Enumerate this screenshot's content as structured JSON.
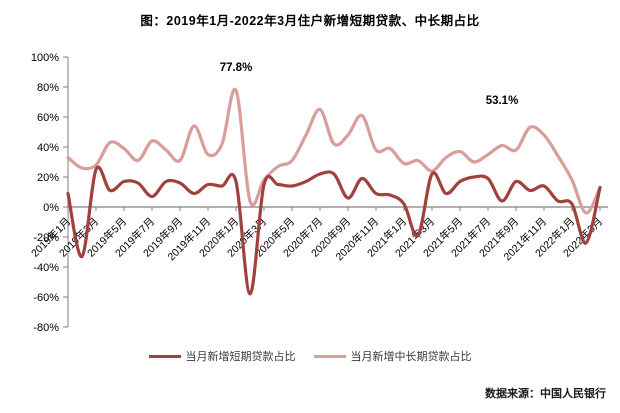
{
  "title": "图：2019年1月-2022年3月住户新增短期贷款、中长期占比",
  "source": "数据来源：中国人民银行",
  "colors": {
    "short_term": "#a0413d",
    "mid_long_term": "#d99d9b",
    "axis": "#808080",
    "text": "#000000"
  },
  "legend": [
    {
      "label": "当月新增短期贷款占比"
    },
    {
      "label": "当月新增中长期贷款占比"
    }
  ],
  "annotations": [
    {
      "text": "77.8%",
      "month": "2020年1月",
      "series": "当月新增中长期贷款占比"
    },
    {
      "text": "53.1%",
      "month": "2021年10月",
      "series": "当月新增中长期贷款占比"
    }
  ],
  "chart_data": {
    "type": "line",
    "smoothed": true,
    "grid": false,
    "legend_position": "bottom",
    "ylim": [
      -80,
      100
    ],
    "y_tick_step": 20,
    "y_tick_labels": [
      "100%",
      "80%",
      "60%",
      "40%",
      "20%",
      "0%",
      "-20%",
      "-40%",
      "-60%",
      "-80%"
    ],
    "x": [
      "2019年1月",
      "2019年2月",
      "2019年3月",
      "2019年4月",
      "2019年5月",
      "2019年6月",
      "2019年7月",
      "2019年8月",
      "2019年9月",
      "2019年10月",
      "2019年11月",
      "2019年12月",
      "2020年1月",
      "2020年2月",
      "2020年3月",
      "2020年4月",
      "2020年5月",
      "2020年6月",
      "2020年7月",
      "2020年8月",
      "2020年9月",
      "2020年10月",
      "2020年11月",
      "2020年12月",
      "2021年1月",
      "2021年2月",
      "2021年3月",
      "2021年4月",
      "2021年5月",
      "2021年6月",
      "2021年7月",
      "2021年8月",
      "2021年9月",
      "2021年10月",
      "2021年11月",
      "2021年12月",
      "2022年1月",
      "2022年2月",
      "2022年3月"
    ],
    "x_tick_labels": [
      "2019年1月",
      "2019年3月",
      "2019年5月",
      "2019年7月",
      "2019年9月",
      "2019年11月",
      "2020年1月",
      "2020年3月",
      "2020年5月",
      "2020年7月",
      "2020年9月",
      "2020年11月",
      "2021年1月",
      "2021年3月",
      "2021年5月",
      "2021年7月",
      "2021年9月",
      "2021年11月",
      "2022年1月",
      "2022年3月"
    ],
    "series": [
      {
        "name": "当月新增短期贷款占比",
        "color": "#a0413d",
        "values": [
          9,
          -33,
          25,
          11,
          17,
          16,
          7,
          17,
          16,
          9,
          15,
          14,
          17,
          -58,
          15,
          15,
          14,
          17,
          22,
          22,
          6,
          19,
          9,
          8,
          2,
          -19,
          22,
          9,
          17,
          20,
          19,
          4,
          17,
          11,
          14,
          4,
          2,
          -24,
          13
        ]
      },
      {
        "name": "当月新增中长期贷款占比",
        "color": "#d99d9b",
        "values": [
          33,
          26,
          28,
          43,
          39,
          31,
          44,
          38,
          31,
          54,
          35,
          42,
          77.8,
          4,
          18,
          27,
          31,
          48,
          65,
          42,
          48,
          61,
          38,
          39,
          29,
          31,
          24,
          33,
          37,
          30,
          35,
          41,
          38,
          53.1,
          48,
          34,
          18,
          -4,
          13
        ]
      }
    ]
  }
}
